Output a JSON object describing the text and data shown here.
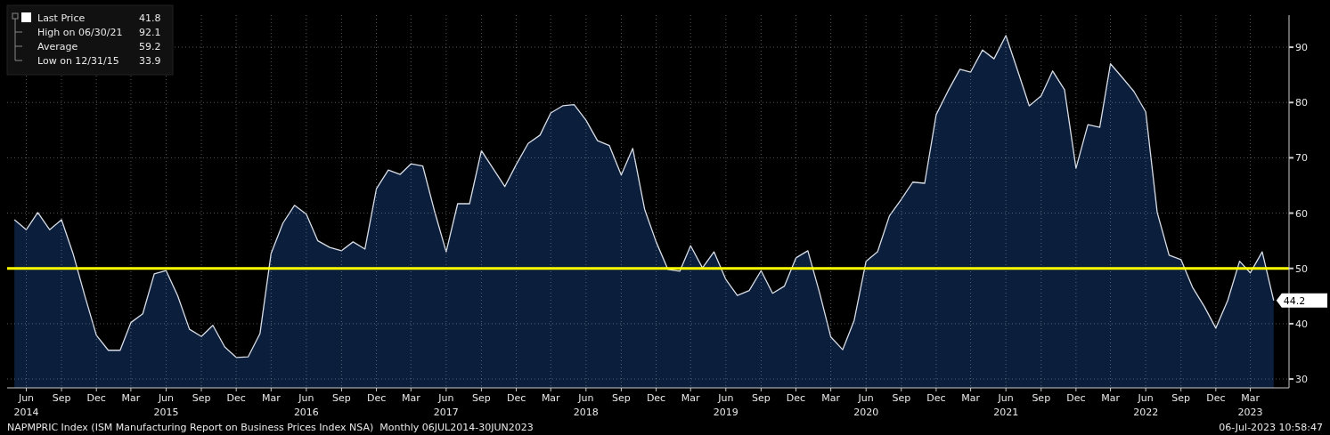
{
  "chart_data": {
    "type": "area",
    "x": [
      "2014-05",
      "2014-06",
      "2014-07",
      "2014-08",
      "2014-09",
      "2014-10",
      "2014-11",
      "2014-12",
      "2015-01",
      "2015-02",
      "2015-03",
      "2015-04",
      "2015-05",
      "2015-06",
      "2015-07",
      "2015-08",
      "2015-09",
      "2015-10",
      "2015-11",
      "2015-12",
      "2016-01",
      "2016-02",
      "2016-03",
      "2016-04",
      "2016-05",
      "2016-06",
      "2016-07",
      "2016-08",
      "2016-09",
      "2016-10",
      "2016-11",
      "2016-12",
      "2017-01",
      "2017-02",
      "2017-03",
      "2017-04",
      "2017-05",
      "2017-06",
      "2017-07",
      "2017-08",
      "2017-09",
      "2017-10",
      "2017-11",
      "2017-12",
      "2018-01",
      "2018-02",
      "2018-03",
      "2018-04",
      "2018-05",
      "2018-06",
      "2018-07",
      "2018-08",
      "2018-09",
      "2018-10",
      "2018-11",
      "2018-12",
      "2019-01",
      "2019-02",
      "2019-03",
      "2019-04",
      "2019-05",
      "2019-06",
      "2019-07",
      "2019-08",
      "2019-09",
      "2019-10",
      "2019-11",
      "2019-12",
      "2020-01",
      "2020-02",
      "2020-03",
      "2020-04",
      "2020-05",
      "2020-06",
      "2020-07",
      "2020-08",
      "2020-09",
      "2020-10",
      "2020-11",
      "2020-12",
      "2021-01",
      "2021-02",
      "2021-03",
      "2021-04",
      "2021-05",
      "2021-06",
      "2021-07",
      "2021-08",
      "2021-09",
      "2021-10",
      "2021-11",
      "2021-12",
      "2022-01",
      "2022-02",
      "2022-03",
      "2022-04",
      "2022-05",
      "2022-06",
      "2022-07",
      "2022-08",
      "2022-09",
      "2022-10",
      "2022-11",
      "2022-12",
      "2023-01",
      "2023-02",
      "2023-03",
      "2023-04",
      "2023-05"
    ],
    "series": [
      {
        "name": "Last Price",
        "color": "#0b1f3d",
        "values": [
          58.8,
          57.0,
          60.1,
          57.0,
          58.8,
          52.7,
          45.0,
          37.9,
          35.2,
          35.2,
          40.2,
          41.8,
          49.0,
          49.6,
          45.1,
          39.0,
          37.7,
          39.7,
          35.8,
          33.9,
          34.0,
          38.2,
          52.7,
          58.2,
          61.4,
          59.8,
          55.0,
          53.8,
          53.2,
          54.8,
          53.5,
          64.4,
          67.8,
          67.0,
          68.9,
          68.5,
          60.5,
          53.0,
          61.7,
          61.7,
          71.3,
          68.1,
          64.8,
          68.8,
          72.6,
          74.1,
          78.1,
          79.4,
          79.6,
          76.8,
          73.1,
          72.2,
          66.9,
          71.7,
          60.7,
          54.8,
          49.8,
          49.5,
          54.1,
          50.1,
          53.0,
          48.0,
          45.1,
          46.0,
          49.6,
          45.5,
          46.8,
          51.9,
          53.2,
          45.5,
          37.6,
          35.3,
          40.6,
          51.3,
          53.0,
          59.5,
          62.5,
          65.6,
          65.4,
          77.8,
          82.1,
          86.0,
          85.5,
          89.5,
          87.9,
          92.1,
          85.9,
          79.4,
          81.2,
          85.7,
          82.3,
          68.1,
          76.0,
          75.5,
          87.0,
          84.5,
          82.0,
          78.3,
          60.1,
          52.4,
          51.6,
          46.6,
          43.1,
          39.2,
          44.2,
          51.3,
          49.2,
          53.0,
          44.2
        ]
      }
    ],
    "xlim": [
      "2014-04-12",
      "2023-06-10"
    ],
    "xticks": [
      {
        "value": "2014-06",
        "label": "Jun 2014"
      },
      {
        "value": "2014-09",
        "label": "Sep"
      },
      {
        "value": "2014-12",
        "label": "Dec"
      },
      {
        "value": "2015-03",
        "label": "Mar"
      },
      {
        "value": "2015-06",
        "label": "Jun 2015"
      },
      {
        "value": "2015-09",
        "label": "Sep"
      },
      {
        "value": "2015-12",
        "label": "Dec"
      },
      {
        "value": "2016-03",
        "label": "Mar"
      },
      {
        "value": "2016-06",
        "label": "Jun 2016"
      },
      {
        "value": "2016-09",
        "label": "Sep"
      },
      {
        "value": "2016-12",
        "label": "Dec"
      },
      {
        "value": "2017-03",
        "label": "Mar"
      },
      {
        "value": "2017-06",
        "label": "Jun 2017"
      },
      {
        "value": "2017-09",
        "label": "Sep"
      },
      {
        "value": "2017-12",
        "label": "Dec"
      },
      {
        "value": "2018-03",
        "label": "Mar"
      },
      {
        "value": "2018-06",
        "label": "Jun 2018"
      },
      {
        "value": "2018-09",
        "label": "Sep"
      },
      {
        "value": "2018-12",
        "label": "Dec"
      },
      {
        "value": "2019-03",
        "label": "Mar"
      },
      {
        "value": "2019-06",
        "label": "Jun 2019"
      },
      {
        "value": "2019-09",
        "label": "Sep"
      },
      {
        "value": "2019-12",
        "label": "Dec"
      },
      {
        "value": "2020-03",
        "label": "Mar"
      },
      {
        "value": "2020-06",
        "label": "Jun 2020"
      },
      {
        "value": "2020-09",
        "label": "Sep"
      },
      {
        "value": "2020-12",
        "label": "Dec"
      },
      {
        "value": "2021-03",
        "label": "Mar"
      },
      {
        "value": "2021-06",
        "label": "Jun 2021"
      },
      {
        "value": "2021-09",
        "label": "Sep"
      },
      {
        "value": "2021-12",
        "label": "Dec"
      },
      {
        "value": "2022-03",
        "label": "Mar"
      },
      {
        "value": "2022-06",
        "label": "Jun 2022"
      },
      {
        "value": "2022-09",
        "label": "Sep"
      },
      {
        "value": "2022-12",
        "label": "Dec"
      },
      {
        "value": "2023-03",
        "label": "Mar 2023"
      }
    ],
    "ylim": [
      28.4,
      95.8
    ],
    "yticks": [
      30,
      40,
      50,
      60,
      70,
      80,
      90
    ],
    "grid": true,
    "legend": "top left",
    "ref_lines": [
      {
        "axis": "y",
        "value": 50,
        "color": "#ffff00"
      }
    ],
    "annotations": [
      "41.8",
      "High on 06/30/21",
      "92.1",
      "Average",
      "59.2",
      "Low on 12/31/15",
      "33.9",
      "NAPMPRIC Index (ISM Manufacturing Report on Business Prices Index NSA)  Monthly 06JUL2014-30JUN2023",
      "06-Jul-2023 10:58:47",
      {
        "text": "44.2",
        "x": "2023-05",
        "y": 44.2
      }
    ]
  }
}
